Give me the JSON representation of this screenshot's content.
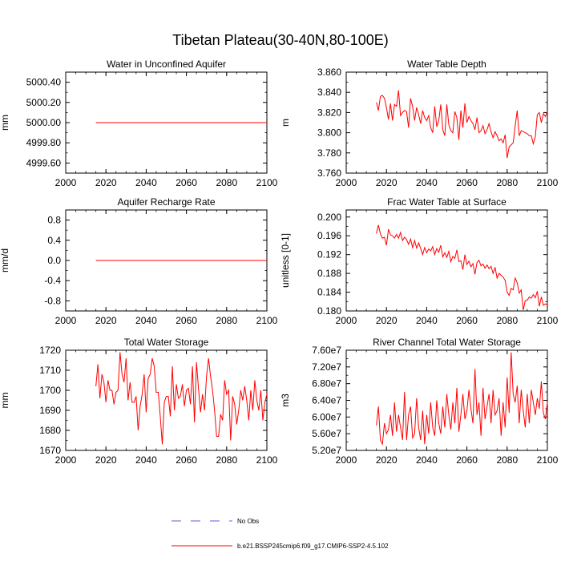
{
  "title": "Tibetan Plateau(30-40N,80-100E)",
  "legend": {
    "obs_label": "No Obs",
    "model_label": "b.e21.BSSP245cmip6.f09_g17.CMIP6-SSP2-4.5.102",
    "obs_color": "#6a5acd",
    "model_color": "#ff0000"
  },
  "chart_data": [
    {
      "type": "line",
      "title": "Water in Unconfined Aquifer",
      "ylabel": "mm",
      "xlim": [
        2000,
        2100
      ],
      "ylim": [
        4999.5,
        5000.5
      ],
      "xticks": [
        "2000",
        "2020",
        "2040",
        "2060",
        "2080",
        "2100"
      ],
      "yticks": [
        {
          "v": 4999.6,
          "label": "4999.60"
        },
        {
          "v": 4999.8,
          "label": "4999.80"
        },
        {
          "v": 5000.0,
          "label": "5000.00"
        },
        {
          "v": 5000.2,
          "label": "5000.20"
        },
        {
          "v": 5000.4,
          "label": "5000.40"
        }
      ],
      "x_start": 2015,
      "series": [
        {
          "values": [
            5000.0,
            5000.0,
            5000.0,
            5000.0,
            5000.0,
            5000.0,
            5000.0,
            5000.0,
            5000.0,
            5000.0,
            5000.0,
            5000.0,
            5000.0,
            5000.0,
            5000.0,
            5000.0,
            5000.0,
            5000.0,
            5000.0,
            5000.0,
            5000.0,
            5000.0,
            5000.0,
            5000.0,
            5000.0,
            5000.0,
            5000.0,
            5000.0,
            5000.0,
            5000.0,
            5000.0,
            5000.0,
            5000.0,
            5000.0,
            5000.0,
            5000.0,
            5000.0,
            5000.0,
            5000.0,
            5000.0,
            5000.0,
            5000.0,
            5000.0,
            5000.0,
            5000.0,
            5000.0,
            5000.0,
            5000.0,
            5000.0,
            5000.0,
            5000.0,
            5000.0,
            5000.0,
            5000.0,
            5000.0,
            5000.0,
            5000.0,
            5000.0,
            5000.0,
            5000.0,
            5000.0,
            5000.0,
            5000.0,
            5000.0,
            5000.0,
            5000.0,
            5000.0,
            5000.0,
            5000.0,
            5000.0,
            5000.0,
            5000.0,
            5000.0,
            5000.0,
            5000.0,
            5000.0,
            5000.0,
            5000.0,
            5000.0,
            5000.0,
            5000.0,
            5000.0,
            5000.0,
            5000.0,
            5000.0,
            5000.0
          ]
        }
      ]
    },
    {
      "type": "line",
      "title": "Water Table Depth",
      "ylabel": "m",
      "xlim": [
        2000,
        2100
      ],
      "ylim": [
        3.76,
        3.86
      ],
      "xticks": [
        "2000",
        "2020",
        "2040",
        "2060",
        "2080",
        "2100"
      ],
      "yticks": [
        {
          "v": 3.76,
          "label": "3.760"
        },
        {
          "v": 3.78,
          "label": "3.780"
        },
        {
          "v": 3.8,
          "label": "3.800"
        },
        {
          "v": 3.82,
          "label": "3.820"
        },
        {
          "v": 3.84,
          "label": "3.840"
        },
        {
          "v": 3.86,
          "label": "3.860"
        }
      ],
      "x_start": 2015,
      "series": [
        {
          "values": [
            3.83,
            3.822,
            3.836,
            3.837,
            3.834,
            3.825,
            3.813,
            3.829,
            3.812,
            3.828,
            3.826,
            3.842,
            3.817,
            3.82,
            3.822,
            3.821,
            3.805,
            3.834,
            3.826,
            3.812,
            3.825,
            3.818,
            3.809,
            3.822,
            3.815,
            3.812,
            3.817,
            3.805,
            3.8,
            3.826,
            3.806,
            3.812,
            3.828,
            3.803,
            3.797,
            3.828,
            3.808,
            3.802,
            3.8,
            3.821,
            3.815,
            3.793,
            3.822,
            3.805,
            3.829,
            3.81,
            3.816,
            3.812,
            3.809,
            3.803,
            3.815,
            3.8,
            3.802,
            3.807,
            3.799,
            3.803,
            3.809,
            3.801,
            3.795,
            3.801,
            3.797,
            3.792,
            3.794,
            3.79,
            3.798,
            3.775,
            3.786,
            3.788,
            3.79,
            3.807,
            3.822,
            3.797,
            3.802,
            3.801,
            3.8,
            3.799,
            3.797,
            3.797,
            3.789,
            3.796,
            3.818,
            3.82,
            3.81,
            3.819,
            3.816,
            3.821
          ]
        }
      ]
    },
    {
      "type": "line",
      "title": "Aquifer Recharge Rate",
      "ylabel": "mm/d",
      "xlim": [
        2000,
        2100
      ],
      "ylim": [
        -1.0,
        1.0
      ],
      "xticks": [
        "2000",
        "2020",
        "2040",
        "2060",
        "2080",
        "2100"
      ],
      "yticks": [
        {
          "v": -0.8,
          "label": "-0.8"
        },
        {
          "v": -0.4,
          "label": "-0.4"
        },
        {
          "v": 0.0,
          "label": "0.0"
        },
        {
          "v": 0.4,
          "label": "0.4"
        },
        {
          "v": 0.8,
          "label": "0.8"
        }
      ],
      "x_start": 2015,
      "series": [
        {
          "values": [
            0.0,
            0.0,
            0.0,
            0.0,
            0.0,
            0.0,
            0.0,
            0.0,
            0.0,
            0.0,
            0.0,
            0.0,
            0.0,
            0.0,
            0.0,
            0.0,
            0.0,
            0.0,
            0.0,
            0.0,
            0.0,
            0.0,
            0.0,
            0.0,
            0.0,
            0.0,
            0.0,
            0.0,
            0.0,
            0.0,
            0.0,
            0.0,
            0.0,
            0.0,
            0.0,
            0.0,
            0.0,
            0.0,
            0.0,
            0.0,
            0.0,
            0.0,
            0.0,
            0.0,
            0.0,
            0.0,
            0.0,
            0.0,
            0.0,
            0.0,
            0.0,
            0.0,
            0.0,
            0.0,
            0.0,
            0.0,
            0.0,
            0.0,
            0.0,
            0.0,
            0.0,
            0.0,
            0.0,
            0.0,
            0.0,
            0.0,
            0.0,
            0.0,
            0.0,
            0.0,
            0.0,
            0.0,
            0.0,
            0.0,
            0.0,
            0.0,
            0.0,
            0.0,
            0.0,
            0.0,
            0.0,
            0.0,
            0.0,
            0.0,
            0.0,
            0.0
          ]
        }
      ]
    },
    {
      "type": "line",
      "title": "Frac Water Table at Surface",
      "ylabel": "unitless [0-1]",
      "xlim": [
        2000,
        2100
      ],
      "ylim": [
        0.18,
        0.2015
      ],
      "xticks": [
        "2000",
        "2020",
        "2040",
        "2060",
        "2080",
        "2100"
      ],
      "yticks": [
        {
          "v": 0.18,
          "label": "0.180"
        },
        {
          "v": 0.184,
          "label": "0.184"
        },
        {
          "v": 0.188,
          "label": "0.188"
        },
        {
          "v": 0.192,
          "label": "0.192"
        },
        {
          "v": 0.196,
          "label": "0.196"
        },
        {
          "v": 0.2,
          "label": "0.200"
        }
      ],
      "x_start": 2015,
      "series": [
        {
          "values": [
            0.1965,
            0.1983,
            0.1964,
            0.1955,
            0.1957,
            0.194,
            0.1974,
            0.1962,
            0.196,
            0.1955,
            0.1963,
            0.1955,
            0.1967,
            0.195,
            0.1957,
            0.1952,
            0.1942,
            0.1953,
            0.1935,
            0.195,
            0.1934,
            0.1945,
            0.1933,
            0.192,
            0.1935,
            0.1924,
            0.1932,
            0.1928,
            0.1937,
            0.192,
            0.1933,
            0.1925,
            0.194,
            0.1915,
            0.1924,
            0.1914,
            0.1927,
            0.1905,
            0.1916,
            0.1912,
            0.193,
            0.1905,
            0.1907,
            0.1888,
            0.192,
            0.1899,
            0.1906,
            0.1894,
            0.1901,
            0.1878,
            0.1903,
            0.1908,
            0.1896,
            0.19,
            0.1891,
            0.1898,
            0.189,
            0.1895,
            0.188,
            0.1893,
            0.187,
            0.188,
            0.1876,
            0.1872,
            0.1865,
            0.184,
            0.1833,
            0.1848,
            0.1845,
            0.187,
            0.186,
            0.1838,
            0.1845,
            0.1802,
            0.1822,
            0.1823,
            0.183,
            0.1827,
            0.1835,
            0.1828,
            0.1842,
            0.181,
            0.183,
            0.1812,
            0.1815,
            0.1813
          ]
        }
      ]
    },
    {
      "type": "line",
      "title": "Total Water Storage",
      "ylabel": "mm",
      "xlim": [
        2000,
        2100
      ],
      "ylim": [
        1670,
        1720
      ],
      "xticks": [
        "2000",
        "2020",
        "2040",
        "2060",
        "2080",
        "2100"
      ],
      "yticks": [
        {
          "v": 1670,
          "label": "1670"
        },
        {
          "v": 1680,
          "label": "1680"
        },
        {
          "v": 1690,
          "label": "1690"
        },
        {
          "v": 1700,
          "label": "1700"
        },
        {
          "v": 1710,
          "label": "1710"
        },
        {
          "v": 1720,
          "label": "1720"
        }
      ],
      "x_start": 2015,
      "series": [
        {
          "values": [
            1702,
            1713,
            1696,
            1708,
            1704,
            1694,
            1705,
            1700,
            1700,
            1693,
            1699,
            1700,
            1719,
            1708,
            1704,
            1716,
            1695,
            1704,
            1694,
            1694,
            1697,
            1680,
            1692,
            1698,
            1708,
            1689,
            1706,
            1708,
            1716,
            1712,
            1699,
            1699,
            1687,
            1673,
            1694,
            1697,
            1697,
            1687,
            1712,
            1690,
            1703,
            1696,
            1697,
            1703,
            1692,
            1700,
            1701,
            1693,
            1712,
            1684,
            1714,
            1701,
            1689,
            1698,
            1690,
            1707,
            1716,
            1707,
            1700,
            1690,
            1677,
            1677,
            1688,
            1685,
            1705,
            1698,
            1700,
            1675,
            1697,
            1693,
            1683,
            1690,
            1700,
            1695,
            1702,
            1695,
            1685,
            1700,
            1690,
            1705,
            1695,
            1690,
            1700,
            1685,
            1694,
            1698
          ]
        }
      ]
    },
    {
      "type": "line",
      "title": "River Channel Total Water Storage",
      "ylabel": "m3",
      "xlim": [
        2000,
        2100
      ],
      "ylim": [
        52000000,
        76000000
      ],
      "xticks": [
        "2000",
        "2020",
        "2040",
        "2060",
        "2080",
        "2100"
      ],
      "yticks": [
        {
          "v": 52000000,
          "label": "5.20e7"
        },
        {
          "v": 56000000,
          "label": "5.60e7"
        },
        {
          "v": 60000000,
          "label": "6.00e7"
        },
        {
          "v": 64000000,
          "label": "6.40e7"
        },
        {
          "v": 68000000,
          "label": "6.80e7"
        },
        {
          "v": 72000000,
          "label": "7.20e7"
        },
        {
          "v": 76000000,
          "label": "7.60e7"
        }
      ],
      "x_start": 2015,
      "series": [
        {
          "values": [
            58000000,
            62500000,
            54500000,
            53500000,
            58500000,
            56000000,
            57000000,
            60500000,
            55500000,
            63500000,
            56500000,
            60500000,
            57500000,
            54500000,
            66000000,
            54500000,
            60500000,
            62500000,
            55000000,
            56000000,
            64500000,
            57500000,
            54500000,
            61500000,
            53500000,
            60500000,
            56000000,
            63500000,
            57500000,
            55500000,
            64000000,
            58500000,
            56000000,
            62500000,
            57500000,
            65500000,
            60500000,
            57000000,
            63500000,
            58500000,
            67000000,
            56500000,
            60500000,
            65500000,
            59500000,
            61500000,
            66500000,
            62000000,
            58500000,
            71500000,
            60500000,
            63500000,
            55500000,
            67000000,
            59500000,
            62500000,
            65500000,
            58500000,
            66500000,
            60500000,
            61500000,
            64500000,
            55500000,
            63500000,
            57500000,
            69500000,
            61000000,
            75500000,
            65500000,
            63500000,
            67500000,
            58500000,
            66500000,
            61500000,
            57500000,
            65500000,
            58500000,
            66500000,
            63500000,
            60500000,
            64500000,
            62000000,
            68500000,
            61000000,
            59500000,
            63500000
          ]
        }
      ]
    }
  ]
}
